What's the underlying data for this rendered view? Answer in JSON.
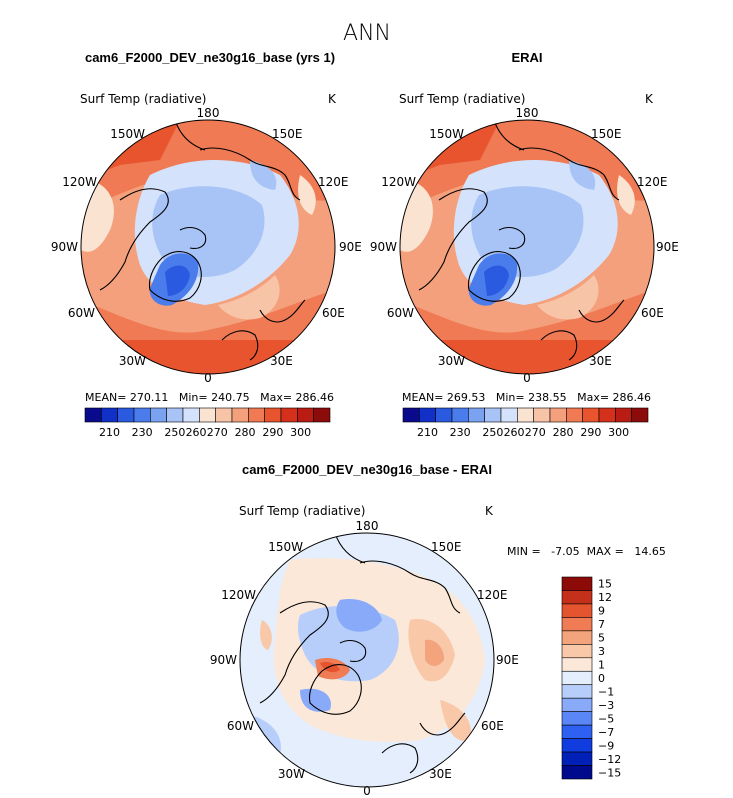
{
  "title": "ANN",
  "colors": {
    "abs_scale": [
      "#0a0a8c",
      "#1030c8",
      "#2a5ae0",
      "#4a7cec",
      "#7aa2f0",
      "#a8c4f6",
      "#d4e2fb",
      "#fbe3d2",
      "#f8c4a8",
      "#f4a07c",
      "#ef7a54",
      "#e8542e",
      "#d4301c",
      "#b81c12",
      "#8c0c0c"
    ],
    "diff_scale": [
      "#000a8c",
      "#0020b8",
      "#103ce0",
      "#2e60f2",
      "#5a86f6",
      "#88aaf8",
      "#b8cefa",
      "#e4eefc",
      "#fbe8d8",
      "#f8c8a8",
      "#f4a47c",
      "#ef7c54",
      "#e4542e",
      "#c4301a",
      "#8c0a08"
    ]
  },
  "panels": {
    "model": {
      "title": "cam6_F2000_DEV_ne30g16_base (yrs 1)",
      "variable": "Surf Temp (radiative)",
      "units": "K",
      "stats": "MEAN= 270.11   Min= 240.75   Max= 286.46"
    },
    "obs": {
      "title": "ERAI",
      "variable": "Surf Temp (radiative)",
      "units": "K",
      "stats": "MEAN= 269.53   Min= 238.55   Max= 286.46"
    },
    "diff": {
      "title": "cam6_F2000_DEV_ne30g16_base - ERAI",
      "variable": "Surf Temp (radiative)",
      "units": "K",
      "stats": "MIN =   -7.05  MAX =   14.65"
    }
  },
  "longitudes": [
    "180",
    "150E",
    "120E",
    "90E",
    "60E",
    "30E",
    "0",
    "30W",
    "60W",
    "90W",
    "120W",
    "150W"
  ],
  "chart_data": [
    {
      "type": "heatmap",
      "projection": "north polar stereographic",
      "title": "cam6_F2000_DEV_ne30g16_base (yrs 1)",
      "variable": "Surf Temp (radiative)",
      "units": "K",
      "mean": 270.11,
      "min": 240.75,
      "max": 286.46,
      "colorbar_ticks": [
        210,
        230,
        250,
        260,
        270,
        280,
        290,
        300
      ]
    },
    {
      "type": "heatmap",
      "projection": "north polar stereographic",
      "title": "ERAI",
      "variable": "Surf Temp (radiative)",
      "units": "K",
      "mean": 269.53,
      "min": 238.55,
      "max": 286.46,
      "colorbar_ticks": [
        210,
        230,
        250,
        260,
        270,
        280,
        290,
        300
      ]
    },
    {
      "type": "heatmap",
      "projection": "north polar stereographic",
      "title": "cam6_F2000_DEV_ne30g16_base - ERAI",
      "variable": "Surf Temp (radiative)",
      "units": "K",
      "min": -7.05,
      "max": 14.65,
      "colorbar_levels": [
        "15",
        "12",
        "9",
        "7",
        "5",
        "3",
        "1",
        "0",
        "−1",
        "−3",
        "−5",
        "−7",
        "−9",
        "−12",
        "−15"
      ]
    }
  ]
}
